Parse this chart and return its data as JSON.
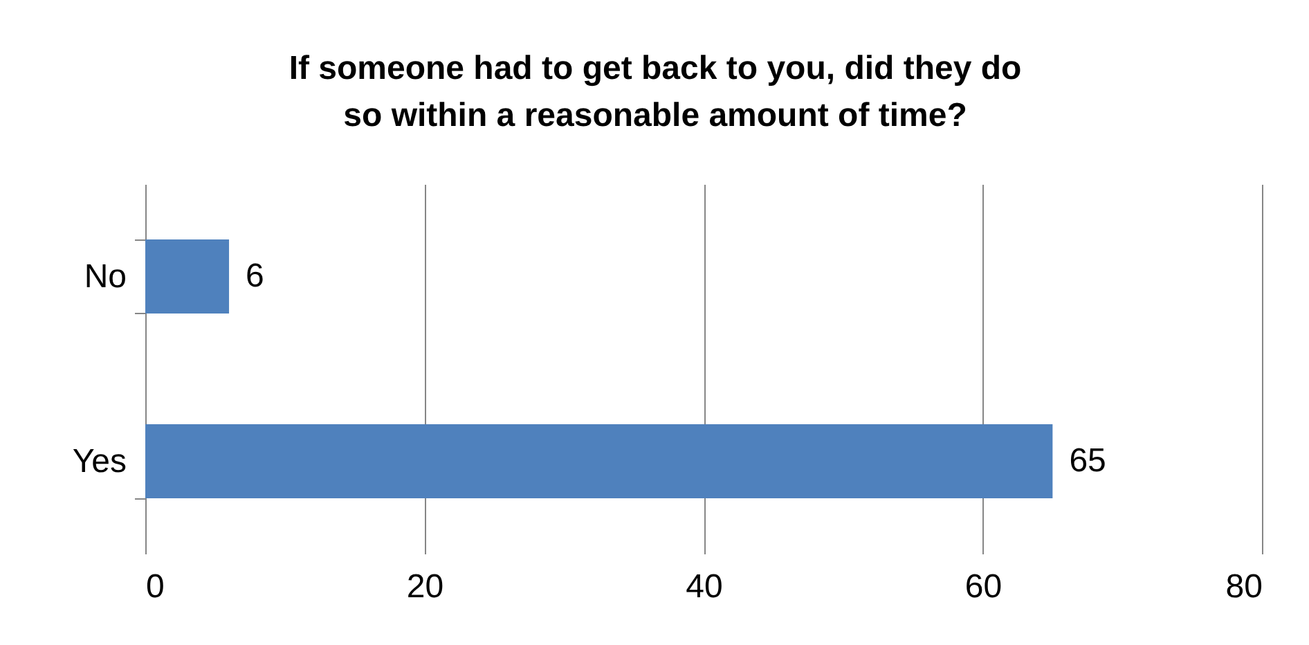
{
  "chart_data": {
    "type": "bar",
    "orientation": "horizontal",
    "title": "If someone had to get back to you, did they do so within a reasonable amount of time?",
    "categories": [
      "No",
      "Yes"
    ],
    "values": [
      6,
      65
    ],
    "color": "#4f81bd",
    "xlim": [
      0,
      80
    ],
    "xticks": [
      0,
      20,
      40,
      60,
      80
    ],
    "grid": "x",
    "data_labels": true
  }
}
